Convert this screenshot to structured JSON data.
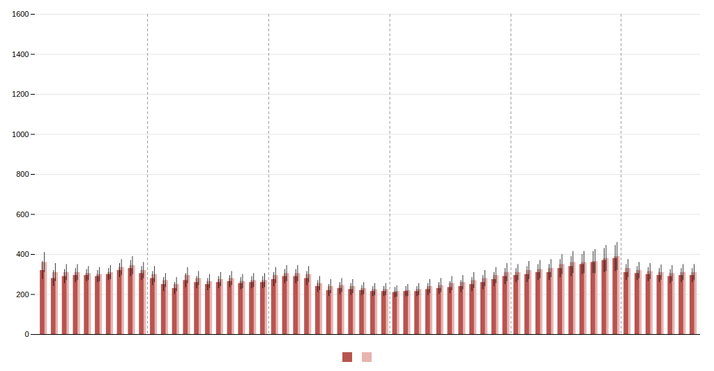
{
  "chart_data": {
    "type": "bar",
    "categories": [
      null,
      null,
      null,
      null,
      null,
      null,
      null,
      null,
      null,
      null,
      null,
      null,
      null,
      null,
      null,
      null,
      null,
      null,
      null,
      null,
      null,
      null,
      null,
      null,
      null,
      null,
      null,
      null,
      null,
      null,
      null,
      null,
      null,
      null,
      null,
      null,
      null,
      null,
      null,
      null,
      null,
      null,
      null,
      null,
      null,
      null,
      null,
      null,
      null,
      null,
      null,
      null,
      null,
      null,
      null,
      null,
      null,
      null,
      null,
      null
    ],
    "series": [
      {
        "color": "#b85450",
        "values": [
          320,
          280,
          290,
          295,
          295,
          290,
          300,
          320,
          330,
          305,
          280,
          250,
          230,
          270,
          260,
          250,
          260,
          265,
          255,
          260,
          260,
          275,
          290,
          290,
          280,
          240,
          220,
          230,
          225,
          220,
          215,
          215,
          210,
          215,
          215,
          225,
          230,
          235,
          240,
          250,
          260,
          275,
          290,
          295,
          300,
          310,
          310,
          330,
          340,
          350,
          360,
          370,
          380,
          310,
          305,
          300,
          295,
          290,
          295,
          295
        ],
        "errors": [
          45,
          40,
          35,
          35,
          30,
          30,
          30,
          35,
          40,
          35,
          35,
          35,
          30,
          35,
          30,
          30,
          30,
          30,
          30,
          30,
          30,
          35,
          35,
          35,
          35,
          30,
          30,
          30,
          30,
          25,
          25,
          25,
          25,
          25,
          25,
          30,
          30,
          30,
          30,
          35,
          35,
          35,
          40,
          35,
          40,
          40,
          40,
          45,
          50,
          50,
          55,
          60,
          65,
          40,
          35,
          35,
          35,
          35,
          35,
          35
        ]
      },
      {
        "color": "#e8b4b0",
        "values": [
          360,
          310,
          310,
          310,
          305,
          300,
          310,
          335,
          345,
          320,
          300,
          270,
          250,
          295,
          280,
          265,
          275,
          280,
          265,
          270,
          270,
          295,
          305,
          305,
          300,
          255,
          240,
          245,
          240,
          230,
          225,
          225,
          215,
          220,
          225,
          240,
          245,
          255,
          260,
          270,
          280,
          295,
          310,
          310,
          320,
          325,
          330,
          350,
          360,
          360,
          365,
          380,
          390,
          330,
          320,
          315,
          310,
          305,
          310,
          310
        ],
        "errors": [
          50,
          45,
          40,
          40,
          35,
          35,
          35,
          40,
          45,
          40,
          40,
          35,
          35,
          40,
          35,
          35,
          35,
          35,
          35,
          35,
          35,
          40,
          40,
          40,
          40,
          35,
          35,
          35,
          35,
          30,
          30,
          30,
          28,
          30,
          30,
          35,
          35,
          35,
          35,
          40,
          40,
          40,
          45,
          40,
          45,
          45,
          45,
          50,
          55,
          55,
          60,
          65,
          70,
          45,
          40,
          40,
          38,
          40,
          40,
          40
        ]
      }
    ],
    "separators": [
      9.5,
      20.5,
      31.5,
      42.5,
      52.5
    ],
    "ylim": [
      0,
      1600
    ],
    "yticks": [
      0,
      200,
      400,
      600,
      800,
      1000,
      1200,
      1400,
      1600
    ],
    "grid": true,
    "legend": "bottom",
    "tick_labels": "y"
  }
}
